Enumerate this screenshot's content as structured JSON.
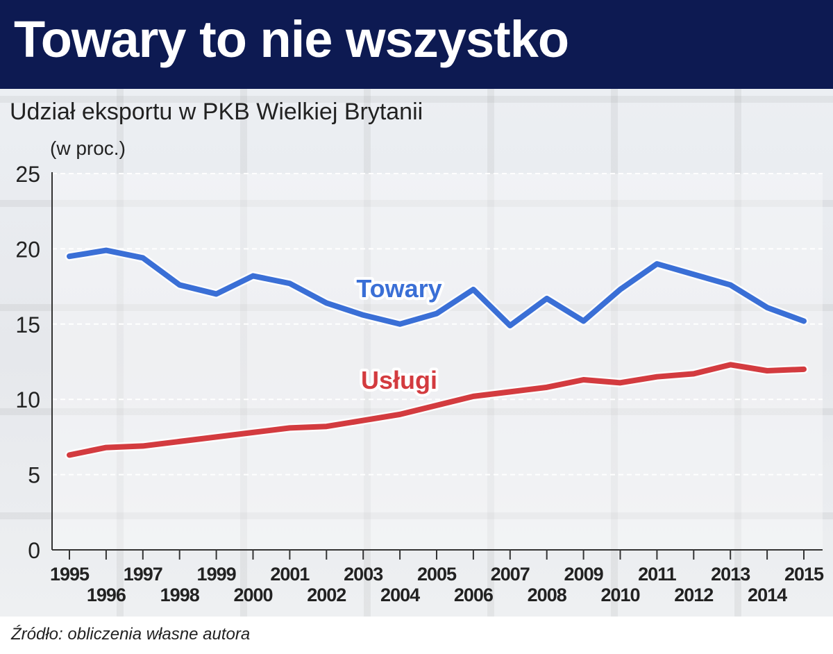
{
  "header": {
    "title": "Towary to nie wszystko"
  },
  "chart_data": {
    "type": "line",
    "title": "Udział eksportu w PKB Wielkiej Brytanii",
    "unit_label": "(w proc.)",
    "x": [
      1995,
      1996,
      1997,
      1998,
      1999,
      2000,
      2001,
      2002,
      2003,
      2004,
      2005,
      2006,
      2007,
      2008,
      2009,
      2010,
      2011,
      2012,
      2013,
      2014,
      2015
    ],
    "series": [
      {
        "name": "Towary",
        "color": "#3a6fd6",
        "values": [
          19.5,
          19.9,
          19.4,
          17.6,
          17.0,
          18.2,
          17.7,
          16.4,
          15.6,
          15.0,
          15.7,
          17.3,
          14.9,
          16.7,
          15.2,
          17.3,
          19.0,
          18.3,
          17.6,
          16.1,
          15.2
        ]
      },
      {
        "name": "Usługi",
        "color": "#d33b3f",
        "values": [
          6.3,
          6.8,
          6.9,
          7.2,
          7.5,
          7.8,
          8.1,
          8.2,
          8.6,
          9.0,
          9.6,
          10.2,
          10.5,
          10.8,
          11.3,
          11.1,
          11.5,
          11.7,
          12.3,
          11.9,
          12.0
        ]
      }
    ],
    "y_ticks": [
      0,
      5,
      10,
      15,
      20,
      25
    ],
    "ylim": [
      0,
      25
    ],
    "xlim": [
      1995,
      2015
    ],
    "grid": true
  },
  "footer": {
    "source": "Źródło: obliczenia własne autora"
  }
}
